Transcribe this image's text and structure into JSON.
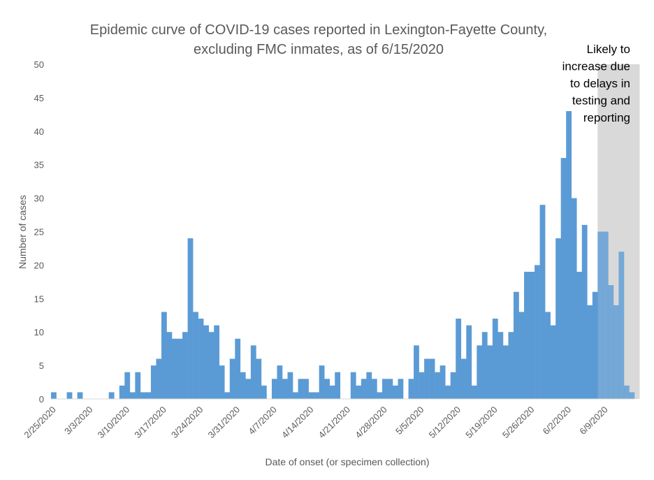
{
  "chart_data": {
    "type": "bar",
    "title_lines": [
      "Epidemic curve of COVID-19 cases reported in Lexington-Fayette County,",
      "excluding FMC inmates, as of 6/15/2020"
    ],
    "xlabel": "Date of onset (or specimen collection)",
    "ylabel": "Number of cases",
    "ylim": [
      0,
      50
    ],
    "yticks": [
      0,
      5,
      10,
      15,
      20,
      25,
      30,
      35,
      40,
      45,
      50
    ],
    "grid": false,
    "legend": "none",
    "bar_color": "#5B9BD5",
    "shade_color": "#D9D9D9",
    "x_start_date": "2/25/2020",
    "x_end_date": "6/15/2020",
    "x_tick_labels": [
      "2/25/2020",
      "3/3/2020",
      "3/10/2020",
      "3/17/2020",
      "3/24/2020",
      "3/31/2020",
      "4/7/2020",
      "4/14/2020",
      "4/21/2020",
      "4/28/2020",
      "5/5/2020",
      "5/12/2020",
      "5/19/2020",
      "5/26/2020",
      "6/2/2020",
      "6/9/2020"
    ],
    "values": [
      1,
      0,
      0,
      1,
      0,
      1,
      0,
      0,
      0,
      0,
      0,
      1,
      0,
      2,
      4,
      1,
      4,
      1,
      1,
      5,
      6,
      13,
      10,
      9,
      9,
      10,
      24,
      13,
      12,
      11,
      10,
      11,
      5,
      1,
      6,
      9,
      4,
      3,
      8,
      6,
      2,
      0,
      3,
      5,
      3,
      4,
      1,
      3,
      3,
      1,
      1,
      5,
      3,
      2,
      4,
      0,
      0,
      4,
      2,
      3,
      4,
      3,
      1,
      3,
      3,
      2,
      3,
      0,
      3,
      8,
      4,
      6,
      6,
      4,
      5,
      2,
      4,
      12,
      6,
      11,
      2,
      8,
      10,
      8,
      12,
      10,
      8,
      10,
      16,
      13,
      19,
      19,
      20,
      29,
      13,
      11,
      24,
      36,
      43,
      30,
      19,
      26,
      14,
      16,
      25,
      25,
      17,
      14,
      22,
      2,
      1
    ],
    "shaded_from": "6/8/2020",
    "shaded_to": "6/15/2020",
    "annotation_lines": [
      "Likely to",
      "increase due",
      "to delays in",
      "testing and",
      "reporting"
    ]
  }
}
